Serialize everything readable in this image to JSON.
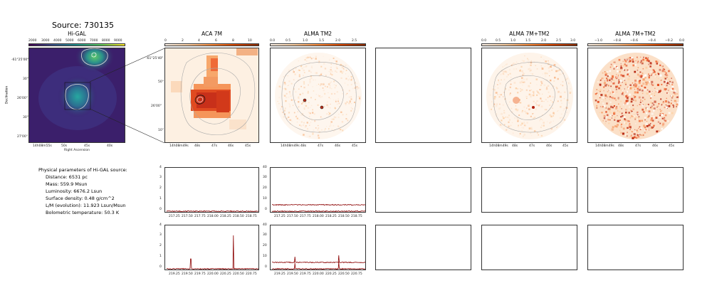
{
  "figure": {
    "title": "Source: 730135",
    "panels": [
      {
        "id": "higal",
        "title": "Hi-GAL"
      },
      {
        "id": "aca7m",
        "title": "ACA 7M"
      },
      {
        "id": "almatm2",
        "title": "ALMA TM2"
      },
      {
        "id": "alma7mtm2",
        "title": "ALMA 7M+TM2"
      },
      {
        "id": "alma7mtm2b",
        "title": "ALMA 7M+TM2"
      }
    ],
    "colorbars": {
      "higal": [
        "2000",
        "3000",
        "4000",
        "5000",
        "6000",
        "7000",
        "8000",
        "9000"
      ],
      "aca7m": [
        "0",
        "2",
        "4",
        "6",
        "8",
        "10"
      ],
      "almatm2": [
        "0.0",
        "0.5",
        "1.0",
        "1.5",
        "2.0",
        "2.5"
      ],
      "alma7mtm2": [
        "0.0",
        "0.5",
        "1.0",
        "1.5",
        "2.0",
        "2.5",
        "3.0"
      ],
      "alma7mtm2b": [
        "−1.0",
        "−0.8",
        "−0.6",
        "−0.4",
        "−0.2",
        "0.0"
      ]
    },
    "higal_axes": {
      "yticks": [
        "-61°25'00\"",
        "30\"",
        "26'00\"",
        "30\"",
        "27'00\""
      ],
      "xticks": [
        "14h08m55s",
        "50s",
        "45s",
        "40s"
      ],
      "xlabel": "Right Ascension",
      "ylabel": "Declination"
    },
    "zoom_axes": {
      "yticks": [
        "-61°25'40\"",
        "50\"",
        "26'00\"",
        "10\""
      ],
      "xticks": [
        "14h08m49s",
        "48s",
        "47s",
        "46s",
        "45s"
      ]
    },
    "spectra": {
      "row1": {
        "aca_yticks": [
          "4",
          "3",
          "2",
          "1",
          "0"
        ],
        "tm2_yticks": [
          "40",
          "30",
          "20",
          "10",
          "0"
        ],
        "xticks": [
          "217.25",
          "217.50",
          "217.75",
          "218.00",
          "218.25",
          "218.50",
          "218.75"
        ]
      },
      "row2": {
        "aca_yticks": [
          "4",
          "3",
          "2",
          "1",
          "0"
        ],
        "tm2_yticks": [
          "40",
          "30",
          "20",
          "10",
          "0"
        ],
        "xticks": [
          "219.25",
          "219.50",
          "219.75",
          "220.00",
          "220.25",
          "220.50",
          "220.75"
        ]
      }
    },
    "colors": {
      "higal_bg": "#3b1f6b",
      "spectrum": "#8b0000",
      "contour": "#bbbbbb"
    }
  },
  "params": {
    "heading": "Physical parameters of Hi-GAL source:",
    "items": [
      "Distance: 6531 pc",
      "Mass: 559.9 Msun",
      "Luminosity: 6676.2 Lsun",
      "Surface density: 0.48 g/cm^2",
      "L/M (evolution): 11.923 Lsun/Msun",
      "Bolometric temperature: 50.3 K"
    ]
  }
}
